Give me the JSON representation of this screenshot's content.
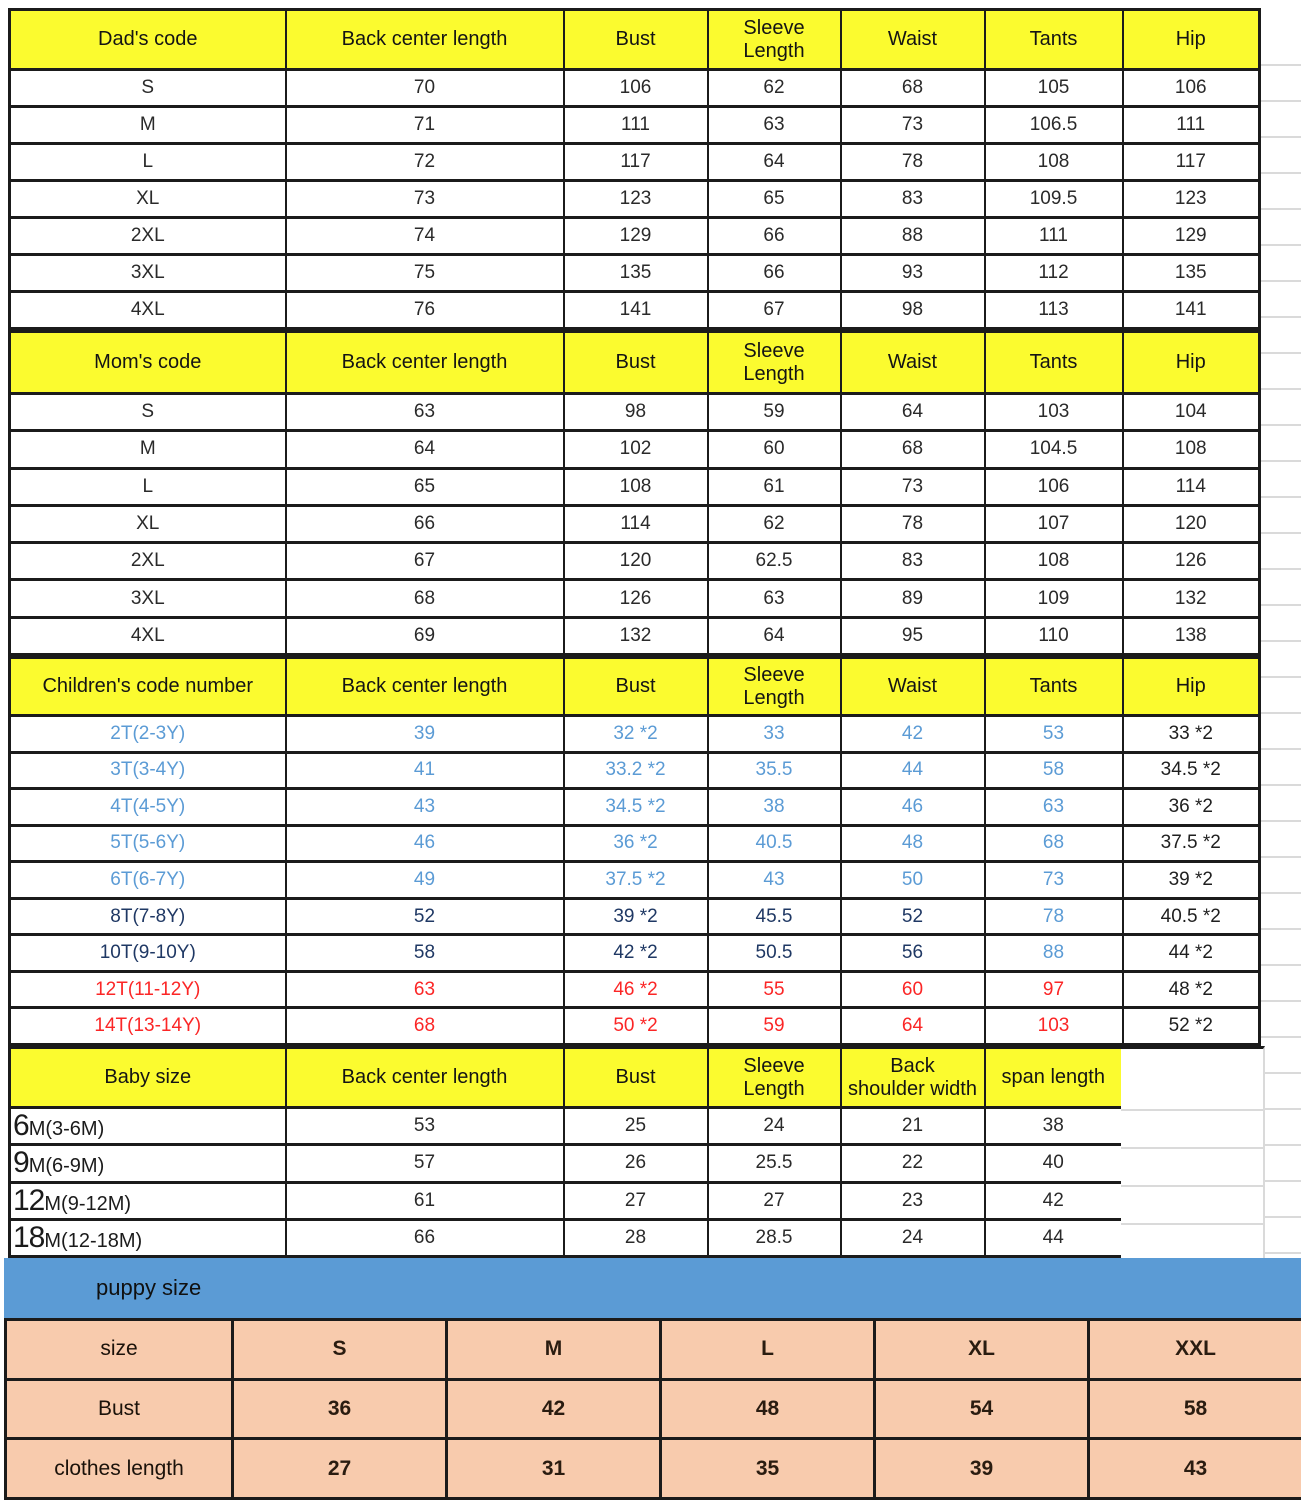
{
  "colors": {
    "header_yellow": "#fbfb2f",
    "puppy_band_blue": "#5b9bd5",
    "puppy_table_peach": "#f8cbad",
    "child_small_blue": "#5b9bd5",
    "child_mid_navy": "#1f3864",
    "child_big_red": "#fb2626",
    "grid_gray": "#dadada",
    "border_black": "#1b1b1b"
  },
  "tables": {
    "dad": {
      "headers": [
        "Dad's code",
        "Back center length",
        "Bust",
        "Sleeve\nLength",
        "Waist",
        "Tants",
        "Hip"
      ],
      "rows": [
        [
          "S",
          "70",
          "106",
          "62",
          "68",
          "105",
          "106"
        ],
        [
          "M",
          "71",
          "111",
          "63",
          "73",
          "106.5",
          "111"
        ],
        [
          "L",
          "72",
          "117",
          "64",
          "78",
          "108",
          "117"
        ],
        [
          "XL",
          "73",
          "123",
          "65",
          "83",
          "109.5",
          "123"
        ],
        [
          "2XL",
          "74",
          "129",
          "66",
          "88",
          "111",
          "129"
        ],
        [
          "3XL",
          "75",
          "135",
          "66",
          "93",
          "112",
          "135"
        ],
        [
          "4XL",
          "76",
          "141",
          "67",
          "98",
          "113",
          "141"
        ]
      ]
    },
    "mom": {
      "headers": [
        "Mom's code",
        "Back center length",
        "Bust",
        "Sleeve\nLength",
        "Waist",
        "Tants",
        "Hip"
      ],
      "rows": [
        [
          "S",
          "63",
          "98",
          "59",
          "64",
          "103",
          "104"
        ],
        [
          "M",
          "64",
          "102",
          "60",
          "68",
          "104.5",
          "108"
        ],
        [
          "L",
          "65",
          "108",
          "61",
          "73",
          "106",
          "114"
        ],
        [
          "XL",
          "66",
          "114",
          "62",
          "78",
          "107",
          "120"
        ],
        [
          "2XL",
          "67",
          "120",
          "62.5",
          "83",
          "108",
          "126"
        ],
        [
          "3XL",
          "68",
          "126",
          "63",
          "89",
          "109",
          "132"
        ],
        [
          "4XL",
          "69",
          "132",
          "64",
          "95",
          "110",
          "138"
        ]
      ]
    },
    "children": {
      "headers": [
        "Children's code number",
        "Back center length",
        "Bust",
        "Sleeve\nLength",
        "Waist",
        "Tants",
        "Hip"
      ],
      "rows": [
        [
          "2T(2-3Y)",
          "39",
          "32 *2",
          "33",
          "42",
          "53",
          "33 *2"
        ],
        [
          "3T(3-4Y)",
          "41",
          "33.2 *2",
          "35.5",
          "44",
          "58",
          "34.5 *2"
        ],
        [
          "4T(4-5Y)",
          "43",
          "34.5 *2",
          "38",
          "46",
          "63",
          "36 *2"
        ],
        [
          "5T(5-6Y)",
          "46",
          "36 *2",
          "40.5",
          "48",
          "68",
          "37.5 *2"
        ],
        [
          "6T(6-7Y)",
          "49",
          "37.5 *2",
          "43",
          "50",
          "73",
          "39 *2"
        ],
        [
          "8T(7-8Y)",
          "52",
          "39 *2",
          "45.5",
          "52",
          "78",
          "40.5 *2"
        ],
        [
          "10T(9-10Y)",
          "58",
          "42 *2",
          "50.5",
          "56",
          "88",
          "44 *2"
        ],
        [
          "12T(11-12Y)",
          "63",
          "46 *2",
          "55",
          "60",
          "97",
          "48 *2"
        ],
        [
          "14T(13-14Y)",
          "68",
          "50 *2",
          "59",
          "64",
          "103",
          "52 *2"
        ]
      ],
      "row_text_colors": [
        "blue",
        "blue",
        "blue",
        "blue",
        "blue",
        "navy",
        "navy",
        "red",
        "red"
      ],
      "tants_column_colors": [
        "blue",
        "blue",
        "blue",
        "blue",
        "blue",
        "blue",
        "blue",
        "red",
        "red"
      ],
      "hip_column_color": "black"
    },
    "baby": {
      "headers": [
        "Baby size",
        "Back center length",
        "Bust",
        "Sleeve\nLength",
        "Back\nshoulder width",
        "span length"
      ],
      "rows": [
        {
          "label_big": "6",
          "label_rest": "M(3-6M)",
          "values": [
            "53",
            "25",
            "24",
            "21",
            "38"
          ]
        },
        {
          "label_big": "9",
          "label_rest": "M(6-9M)",
          "values": [
            "57",
            "26",
            "25.5",
            "22",
            "40"
          ]
        },
        {
          "label_big": "12",
          "label_rest": "M(9-12M)",
          "values": [
            "61",
            "27",
            "27",
            "23",
            "42"
          ]
        },
        {
          "label_big": "18",
          "label_rest": "M(12-18M)",
          "values": [
            "66",
            "28",
            "28.5",
            "24",
            "44"
          ]
        }
      ]
    },
    "puppy": {
      "title": "puppy size",
      "rows": [
        [
          "size",
          "S",
          "M",
          "L",
          "XL",
          "XXL"
        ],
        [
          "Bust",
          "36",
          "42",
          "48",
          "54",
          "58"
        ],
        [
          "clothes length",
          "27",
          "31",
          "35",
          "39",
          "43"
        ]
      ]
    }
  }
}
